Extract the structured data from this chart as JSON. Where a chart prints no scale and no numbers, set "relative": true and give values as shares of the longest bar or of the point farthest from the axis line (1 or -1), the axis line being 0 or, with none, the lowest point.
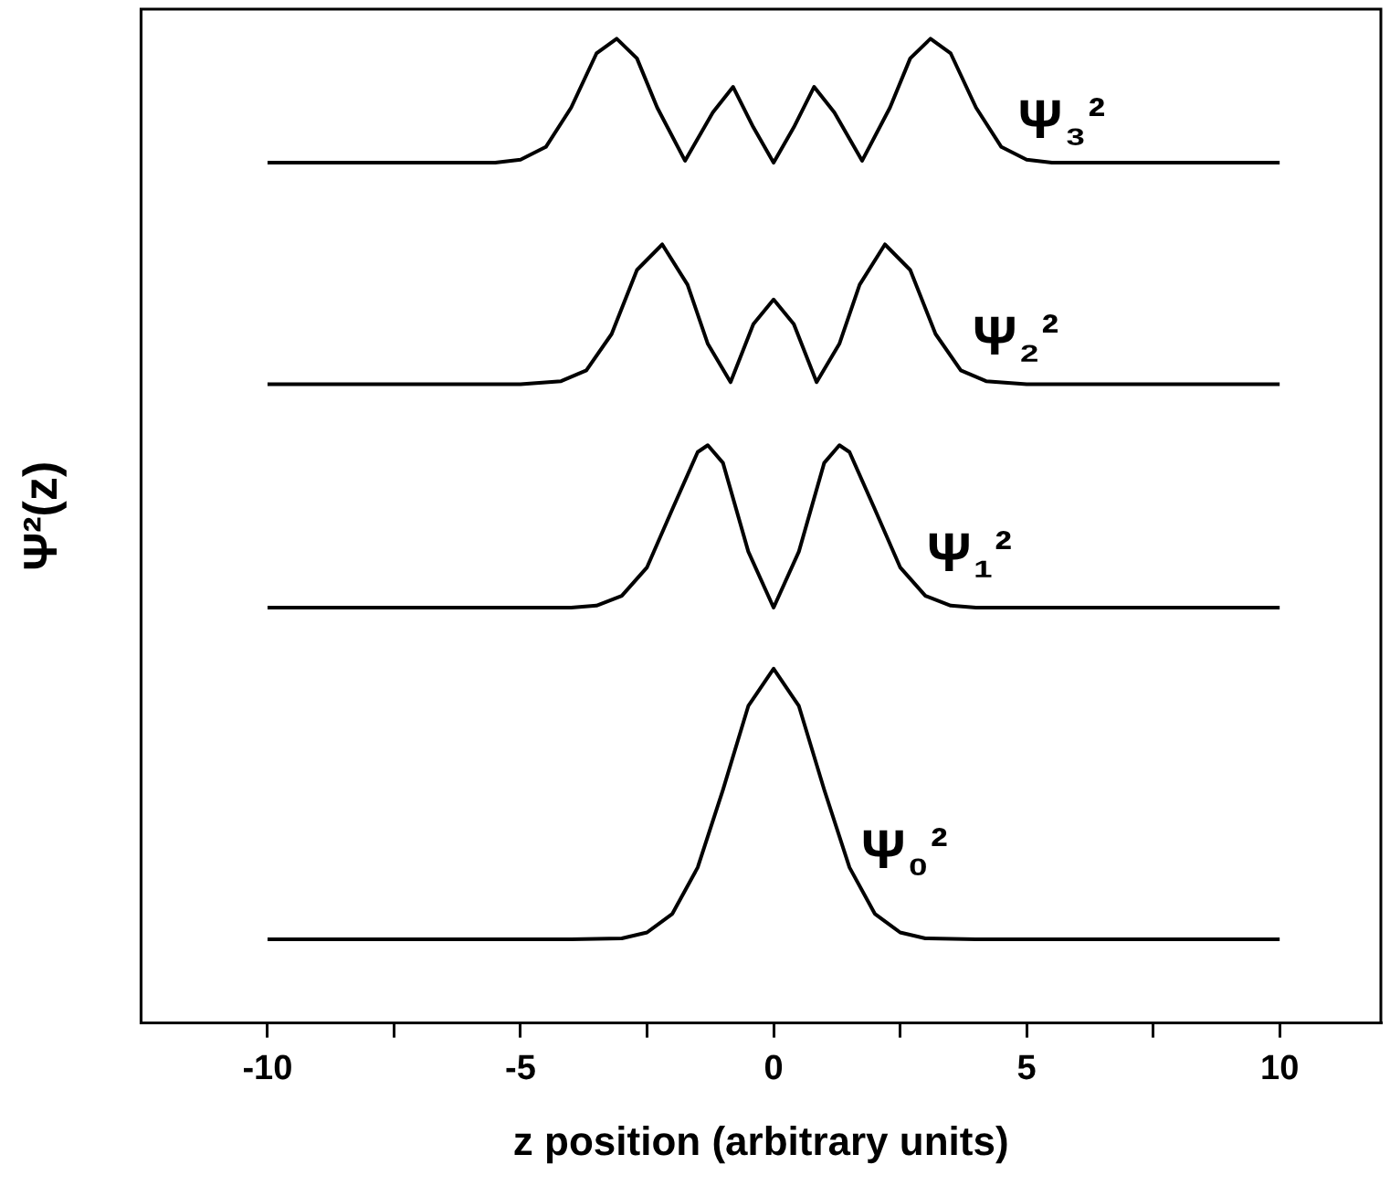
{
  "chart_data": {
    "type": "line",
    "relative": true,
    "xlabel": "z position (arbitrary units)",
    "ylabel": "Ψ²(z)",
    "xlim": [
      -12.5,
      12
    ],
    "xticks": [
      -10,
      {
        "value": -7.5,
        "label": null
      },
      -5,
      {
        "value": -2.5,
        "label": null
      },
      0,
      {
        "value": 2.5,
        "label": null
      },
      5,
      {
        "value": 7.5,
        "label": null
      },
      10
    ],
    "grid": false,
    "legend": false,
    "marker": "none",
    "line_style": "solid",
    "series": [
      {
        "name": "Ψ₀²",
        "color": "#000000",
        "x": [
          -10,
          -4,
          -3,
          -2.5,
          -2,
          -1.5,
          -1,
          -0.5,
          0,
          0.5,
          1,
          1.5,
          2,
          2.5,
          3,
          4,
          10
        ],
        "values": [
          0.085,
          0.085,
          0.086,
          0.092,
          0.111,
          0.158,
          0.237,
          0.322,
          0.36,
          0.322,
          0.237,
          0.158,
          0.111,
          0.092,
          0.086,
          0.085,
          0.085
        ]
      },
      {
        "name": "Ψ₁²",
        "color": "#000000",
        "x": [
          -10,
          -4,
          -3.5,
          -3,
          -2.5,
          -2,
          -1.5,
          -1.3,
          -1,
          -0.5,
          0,
          0.5,
          1,
          1.3,
          1.5,
          2,
          2.5,
          3,
          3.5,
          4,
          10
        ],
        "values": [
          0.422,
          0.422,
          0.424,
          0.434,
          0.463,
          0.522,
          0.58,
          0.587,
          0.569,
          0.479,
          0.422,
          0.479,
          0.569,
          0.587,
          0.58,
          0.522,
          0.463,
          0.434,
          0.424,
          0.422,
          0.422
        ]
      },
      {
        "name": "Ψ₂²",
        "color": "#000000",
        "x": [
          -10,
          -5,
          -4.2,
          -3.7,
          -3.2,
          -2.7,
          -2.2,
          -1.7,
          -1.3,
          -0.85,
          -0.4,
          0,
          0.4,
          0.85,
          1.3,
          1.7,
          2.2,
          2.7,
          3.2,
          3.7,
          4.2,
          5,
          10
        ],
        "values": [
          0.649,
          0.649,
          0.652,
          0.663,
          0.7,
          0.765,
          0.791,
          0.75,
          0.69,
          0.651,
          0.71,
          0.735,
          0.71,
          0.651,
          0.69,
          0.75,
          0.791,
          0.765,
          0.7,
          0.663,
          0.652,
          0.649,
          0.649
        ]
      },
      {
        "name": "Ψ₃²",
        "color": "#000000",
        "x": [
          -10,
          -5.5,
          -5,
          -4.5,
          -4,
          -3.5,
          -3.1,
          -2.7,
          -2.3,
          -1.75,
          -1.2,
          -0.8,
          -0.4,
          0,
          0.4,
          0.8,
          1.2,
          1.75,
          2.3,
          2.7,
          3.1,
          3.5,
          4,
          4.5,
          5,
          5.5,
          10
        ],
        "values": [
          0.874,
          0.874,
          0.877,
          0.89,
          0.93,
          0.985,
          1,
          0.98,
          0.93,
          0.876,
          0.925,
          0.951,
          0.91,
          0.874,
          0.91,
          0.951,
          0.925,
          0.876,
          0.93,
          0.98,
          1,
          0.985,
          0.93,
          0.89,
          0.877,
          0.874,
          0.874
        ]
      }
    ]
  }
}
